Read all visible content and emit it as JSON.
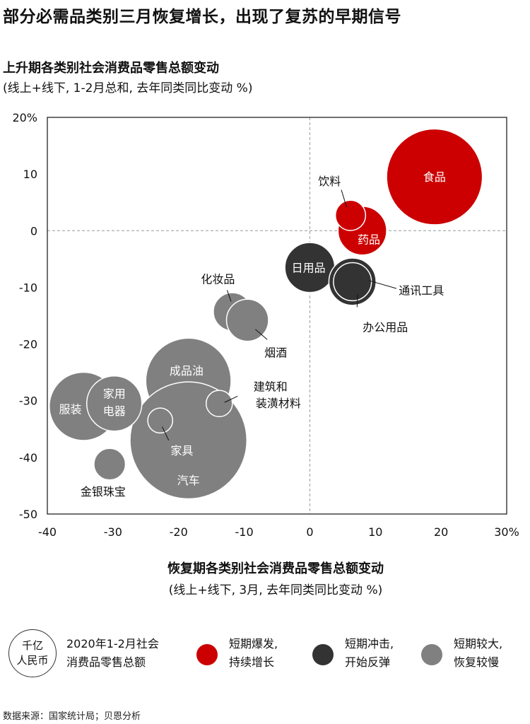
{
  "title": "部分必需品类别三月恢复增长，出现了复苏的早期信号",
  "y_title": "上升期各类别社会消费品零售总额变动",
  "y_subtitle": "(线上+线下, 1-2月总和, 去年同类同比变动 %)",
  "x_title": "恢复期各类别社会消费品零售总额变动",
  "x_subtitle": "(线上+线下, 3月, 去年同类同比变动 %)",
  "source": "数据来源：国家统计局；贝恩分析",
  "legend": {
    "size_label_line1": "千亿",
    "size_label_line2": "人民币",
    "size_desc_line1": "2020年1-2月社会",
    "size_desc_line2": "消费品零售总额",
    "groups": [
      {
        "line1": "短期爆发,",
        "line2": "持续增长",
        "color": "#cc0000"
      },
      {
        "line1": "短期冲击,",
        "line2": "开始反弹",
        "color": "#333333"
      },
      {
        "line1": "短期较大,",
        "line2": "恢复较慢",
        "color": "#808080"
      }
    ]
  },
  "chart_data": {
    "type": "scatter",
    "xlim": [
      -40,
      30
    ],
    "ylim": [
      -50,
      20
    ],
    "x_ticks": [
      "-40",
      "-30",
      "-20",
      "-10",
      "0",
      "10",
      "20",
      "30%"
    ],
    "y_ticks": [
      "20%",
      "10",
      "0",
      "-10",
      "-20",
      "-30",
      "-40",
      "-50"
    ],
    "reference_lines": {
      "x": 0,
      "y": 0
    },
    "points": [
      {
        "name": "食品",
        "x": 19.0,
        "y": 9.5,
        "size": 7.3,
        "group": 0
      },
      {
        "name": "药品",
        "x": 8.0,
        "y": 0.0,
        "size": 3.7,
        "group": 0
      },
      {
        "name": "饮料",
        "x": 6.2,
        "y": 2.7,
        "size": 2.3,
        "group": 0
      },
      {
        "name": "日用品",
        "x": 0.0,
        "y": -6.5,
        "size": 3.8,
        "group": 1
      },
      {
        "name": "通讯工具",
        "x": 6.5,
        "y": -9.0,
        "size": 3.6,
        "group": 1
      },
      {
        "name": "办公用品",
        "x": 6.5,
        "y": -9.0,
        "size": 2.9,
        "group": 1
      },
      {
        "name": "化妆品",
        "x": -11.8,
        "y": -14.3,
        "size": 2.9,
        "group": 2
      },
      {
        "name": "烟酒",
        "x": -9.5,
        "y": -15.8,
        "size": 3.2,
        "group": 2
      },
      {
        "name": "成品油",
        "x": -18.5,
        "y": -26.5,
        "size": 6.5,
        "group": 2
      },
      {
        "name": "汽车",
        "x": -18.5,
        "y": -37.0,
        "size": 8.9,
        "group": 2
      },
      {
        "name": "服装",
        "x": -34.5,
        "y": -31.0,
        "size": 5.2,
        "group": 2
      },
      {
        "name": "家用电器",
        "x": -29.8,
        "y": -30.5,
        "size": 4.2,
        "group": 2
      },
      {
        "name": "建筑和装潢材料",
        "x": -13.8,
        "y": -30.5,
        "size": 2.0,
        "group": 2
      },
      {
        "name": "家具",
        "x": -22.8,
        "y": -33.5,
        "size": 1.9,
        "group": 2
      },
      {
        "name": "金银珠宝",
        "x": -30.5,
        "y": -41.2,
        "size": 2.4,
        "group": 2
      }
    ],
    "labels": [
      {
        "text": "食品",
        "x": 19.0,
        "y": 9.5,
        "color": "#ffffff"
      },
      {
        "text": "药品",
        "x": 9.0,
        "y": -1.5,
        "color": "#ffffff"
      },
      {
        "text": "饮料",
        "x": 3.0,
        "y": 8.8,
        "color": "#111111"
      },
      {
        "text": "日用品",
        "x": -0.2,
        "y": -6.5,
        "color": "#ffffff"
      },
      {
        "text": "通讯工具",
        "x": 17.0,
        "y": -10.5,
        "color": "#111111"
      },
      {
        "text": "办公用品",
        "x": 11.5,
        "y": -17.0,
        "color": "#111111"
      },
      {
        "text": "化妆品",
        "x": -14.0,
        "y": -8.5,
        "color": "#111111"
      },
      {
        "text": "烟酒",
        "x": -5.2,
        "y": -21.5,
        "color": "#111111"
      },
      {
        "text": "成品油",
        "x": -18.8,
        "y": -24.7,
        "color": "#ffffff"
      },
      {
        "text": "汽车",
        "x": -18.5,
        "y": -44.0,
        "color": "#ffffff"
      },
      {
        "text": "服装",
        "x": -36.5,
        "y": -31.5,
        "color": "#ffffff"
      },
      {
        "text": "家用",
        "x": -29.8,
        "y": -28.7,
        "color": "#ffffff"
      },
      {
        "text": "电器",
        "x": -29.8,
        "y": -31.8,
        "color": "#ffffff"
      },
      {
        "text": "家具",
        "x": -19.5,
        "y": -38.8,
        "color": "#ffffff"
      },
      {
        "text": "建筑和",
        "x": -6.0,
        "y": -27.5,
        "color": "#111111"
      },
      {
        "text": "装潢材料",
        "x": -4.8,
        "y": -30.4,
        "color": "#111111"
      },
      {
        "text": "金银珠宝",
        "x": -31.5,
        "y": -46.0,
        "color": "#111111"
      }
    ]
  }
}
